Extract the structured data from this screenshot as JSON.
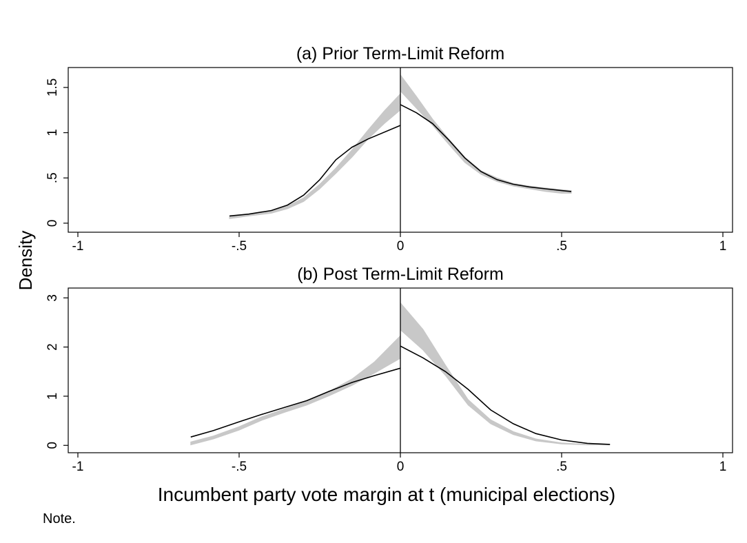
{
  "figure": {
    "ylabel": "Density",
    "xlabel": "Incumbent party vote margin at t (municipal elections)",
    "note": "Note."
  },
  "colors": {
    "line": "#000000",
    "band": "#c8c8c8",
    "frame": "#000000"
  },
  "chart_data": [
    {
      "type": "line",
      "title": "(a) Prior Term-Limit Reform",
      "xlim": [
        -1,
        1
      ],
      "ylim": [
        -0.1,
        1.72
      ],
      "xticks": [
        -1,
        -0.5,
        0,
        0.5,
        1
      ],
      "xtick_labels": [
        "-1",
        "-.5",
        "0",
        ".5",
        "1"
      ],
      "yticks": [
        0,
        0.5,
        1,
        1.5
      ],
      "ytick_labels": [
        "0",
        ".5",
        "1",
        "1.5"
      ],
      "cutoff": 0,
      "series": [
        {
          "name": "density-left",
          "x": [
            -0.53,
            -0.47,
            -0.4,
            -0.35,
            -0.3,
            -0.25,
            -0.2,
            -0.15,
            -0.1,
            0
          ],
          "y": [
            0.08,
            0.1,
            0.14,
            0.2,
            0.31,
            0.48,
            0.7,
            0.84,
            0.93,
            1.08
          ]
        },
        {
          "name": "density-right",
          "x": [
            0,
            0.05,
            0.1,
            0.15,
            0.2,
            0.25,
            0.3,
            0.35,
            0.4,
            0.45,
            0.5,
            0.53
          ],
          "y": [
            1.31,
            1.22,
            1.1,
            0.92,
            0.72,
            0.57,
            0.48,
            0.43,
            0.4,
            0.38,
            0.36,
            0.35
          ]
        },
        {
          "name": "ci-band-left",
          "x": [
            -0.53,
            -0.47,
            -0.4,
            -0.35,
            -0.3,
            -0.25,
            -0.2,
            -0.15,
            -0.1,
            -0.05,
            0
          ],
          "lower": [
            0.05,
            0.08,
            0.11,
            0.16,
            0.24,
            0.38,
            0.55,
            0.73,
            0.93,
            1.1,
            1.25
          ],
          "upper": [
            0.07,
            0.1,
            0.14,
            0.19,
            0.28,
            0.43,
            0.61,
            0.81,
            1.03,
            1.24,
            1.43
          ]
        },
        {
          "name": "ci-band-right",
          "x": [
            0,
            0.05,
            0.1,
            0.15,
            0.2,
            0.25,
            0.3,
            0.35,
            0.4,
            0.45,
            0.5,
            0.53
          ],
          "lower": [
            1.46,
            1.27,
            1.08,
            0.87,
            0.67,
            0.54,
            0.46,
            0.41,
            0.38,
            0.35,
            0.33,
            0.33
          ],
          "upper": [
            1.64,
            1.4,
            1.15,
            0.93,
            0.73,
            0.58,
            0.5,
            0.44,
            0.41,
            0.39,
            0.37,
            0.36
          ]
        }
      ]
    },
    {
      "type": "line",
      "title": "(b) Post Term-Limit Reform",
      "xlim": [
        -1,
        1
      ],
      "ylim": [
        -0.15,
        3.2
      ],
      "xticks": [
        -1,
        -0.5,
        0,
        0.5,
        1
      ],
      "xtick_labels": [
        "-1",
        "-.5",
        "0",
        ".5",
        "1"
      ],
      "yticks": [
        0,
        1,
        2,
        3
      ],
      "ytick_labels": [
        "0",
        "1",
        "2",
        "3"
      ],
      "cutoff": 0,
      "series": [
        {
          "name": "density-left",
          "x": [
            -0.65,
            -0.58,
            -0.5,
            -0.43,
            -0.36,
            -0.29,
            -0.22,
            -0.15,
            -0.08,
            0
          ],
          "y": [
            0.17,
            0.3,
            0.48,
            0.63,
            0.77,
            0.91,
            1.1,
            1.28,
            1.42,
            1.57
          ]
        },
        {
          "name": "density-right",
          "x": [
            0,
            0.07,
            0.14,
            0.21,
            0.28,
            0.35,
            0.42,
            0.5,
            0.58,
            0.65
          ],
          "y": [
            2.02,
            1.78,
            1.5,
            1.14,
            0.72,
            0.44,
            0.24,
            0.11,
            0.04,
            0.02
          ]
        },
        {
          "name": "ci-band-left",
          "x": [
            -0.65,
            -0.58,
            -0.5,
            -0.43,
            -0.36,
            -0.29,
            -0.22,
            -0.15,
            -0.08,
            0
          ],
          "lower": [
            0.01,
            0.13,
            0.31,
            0.51,
            0.67,
            0.82,
            1.01,
            1.22,
            1.47,
            1.77
          ],
          "upper": [
            0.07,
            0.19,
            0.38,
            0.58,
            0.74,
            0.9,
            1.1,
            1.35,
            1.7,
            2.23
          ]
        },
        {
          "name": "ci-band-right",
          "x": [
            0,
            0.07,
            0.14,
            0.21,
            0.28,
            0.35,
            0.42,
            0.5,
            0.58,
            0.65
          ],
          "lower": [
            2.35,
            1.94,
            1.42,
            0.82,
            0.44,
            0.22,
            0.09,
            0.03,
            0.01,
            0.01
          ],
          "upper": [
            2.9,
            2.36,
            1.63,
            0.93,
            0.52,
            0.28,
            0.13,
            0.05,
            0.02,
            0.01
          ]
        }
      ]
    }
  ]
}
